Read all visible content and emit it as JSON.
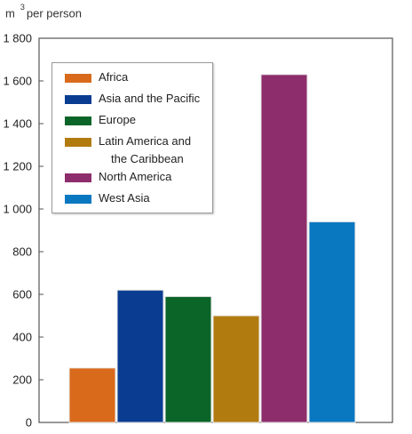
{
  "unit_label": {
    "prefix": "m",
    "superscript": "3",
    "suffix": "per person"
  },
  "chart_data": {
    "type": "bar",
    "ylim": [
      0,
      1800
    ],
    "yticks": [
      "0",
      "200",
      "400",
      "600",
      "800",
      "1 000",
      "1 200",
      "1 400",
      "1 600",
      "1 800"
    ],
    "ytick_values": [
      0,
      200,
      400,
      600,
      800,
      1000,
      1200,
      1400,
      1600,
      1800
    ],
    "grid": false,
    "legend_position": "top-left",
    "series": [
      {
        "name": "Africa",
        "value": 255,
        "color": "#d96a1c"
      },
      {
        "name": "Asia and the Pacific",
        "value": 620,
        "color": "#0a3d91"
      },
      {
        "name": "Europe",
        "value": 590,
        "color": "#0b6428"
      },
      {
        "name": "Latin America and the Caribbean",
        "name_line1": "Latin America and",
        "name_line2": "the Caribbean",
        "value": 500,
        "color": "#b27b10"
      },
      {
        "name": "North America",
        "value": 1630,
        "color": "#8e2d6b"
      },
      {
        "name": "West Asia",
        "value": 940,
        "color": "#0a77c1"
      }
    ]
  }
}
